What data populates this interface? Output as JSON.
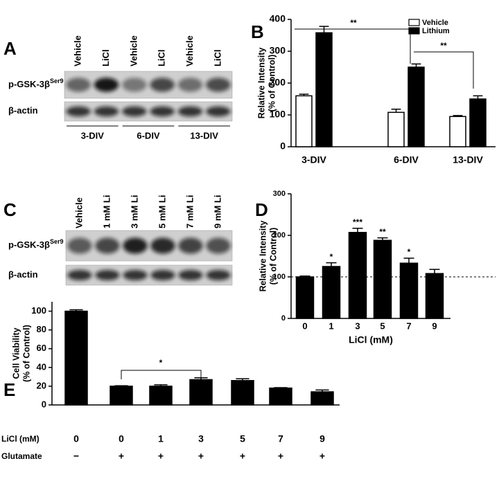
{
  "blots": [
    {
      "panel": "A",
      "lanes": [
        "Vehicle",
        "LiCl",
        "Vehicle",
        "LiCl",
        "Vehicle",
        "LiCl"
      ],
      "rows": [
        {
          "label": "p-GSK-3β",
          "sup": "Ser9"
        },
        {
          "label": "β-actin"
        }
      ],
      "groups": [
        "3-DIV",
        "6-DIV",
        "13-DIV"
      ]
    },
    {
      "panel": "C",
      "lanes": [
        "Vehicle",
        "1 mM Li",
        "3 mM Li",
        "5 mM Li",
        "7 mM Li",
        "9 mM Li"
      ],
      "rows": [
        {
          "label": "p-GSK-3β",
          "sup": "Ser9"
        },
        {
          "label": "β-actin"
        }
      ]
    }
  ],
  "chart_data": [
    {
      "panel": "B",
      "type": "bar",
      "categories": [
        "3-DIV",
        "6-DIV",
        "13-DIV"
      ],
      "series": [
        {
          "name": "Vehicle",
          "color": "#ffffff",
          "values": [
            160,
            108,
            95
          ],
          "errors": [
            5,
            10,
            3
          ]
        },
        {
          "name": "Lithium",
          "color": "#000000",
          "values": [
            358,
            250,
            150
          ],
          "errors": [
            20,
            10,
            10
          ]
        }
      ],
      "ylabel": [
        "Relative Intensity",
        "(% of Control)"
      ],
      "ylim": [
        0,
        400
      ],
      "yticks": [
        0,
        100,
        200,
        300,
        400
      ],
      "legend": "upper right",
      "annotations": [
        "**",
        "**"
      ]
    },
    {
      "panel": "D",
      "type": "bar",
      "categories": [
        "0",
        "1",
        "3",
        "5",
        "7",
        "9"
      ],
      "values": [
        100,
        125,
        207,
        188,
        133,
        108
      ],
      "errors": [
        2,
        9,
        10,
        6,
        12,
        10
      ],
      "color": "#000000",
      "significance": [
        null,
        "*",
        "***",
        "**",
        "*",
        null
      ],
      "reference_line": 100,
      "xlabel": "LiCl (mM)",
      "ylabel": [
        "Relative Intensity",
        "(% of Control)"
      ],
      "ylim": [
        0,
        300
      ],
      "yticks": [
        0,
        100,
        200,
        300
      ]
    },
    {
      "panel": "E",
      "type": "bar",
      "categories": [
        "0",
        "0",
        "1",
        "3",
        "5",
        "7",
        "9"
      ],
      "category_label": "LiCl (mM)",
      "conditions": {
        "label": "Glutamate",
        "values": [
          "−",
          "+",
          "+",
          "+",
          "+",
          "+",
          "+"
        ]
      },
      "values": [
        100,
        20,
        20,
        27,
        26,
        18,
        14
      ],
      "errors": [
        1.5,
        0.5,
        1.5,
        2,
        2,
        0.5,
        2
      ],
      "color": "#000000",
      "ylabel": [
        "Cell Viability",
        "(% of Control)"
      ],
      "ylim": [
        0,
        110
      ],
      "yticks": [
        0,
        20,
        40,
        60,
        80,
        100
      ],
      "annotations": [
        "*"
      ]
    }
  ]
}
